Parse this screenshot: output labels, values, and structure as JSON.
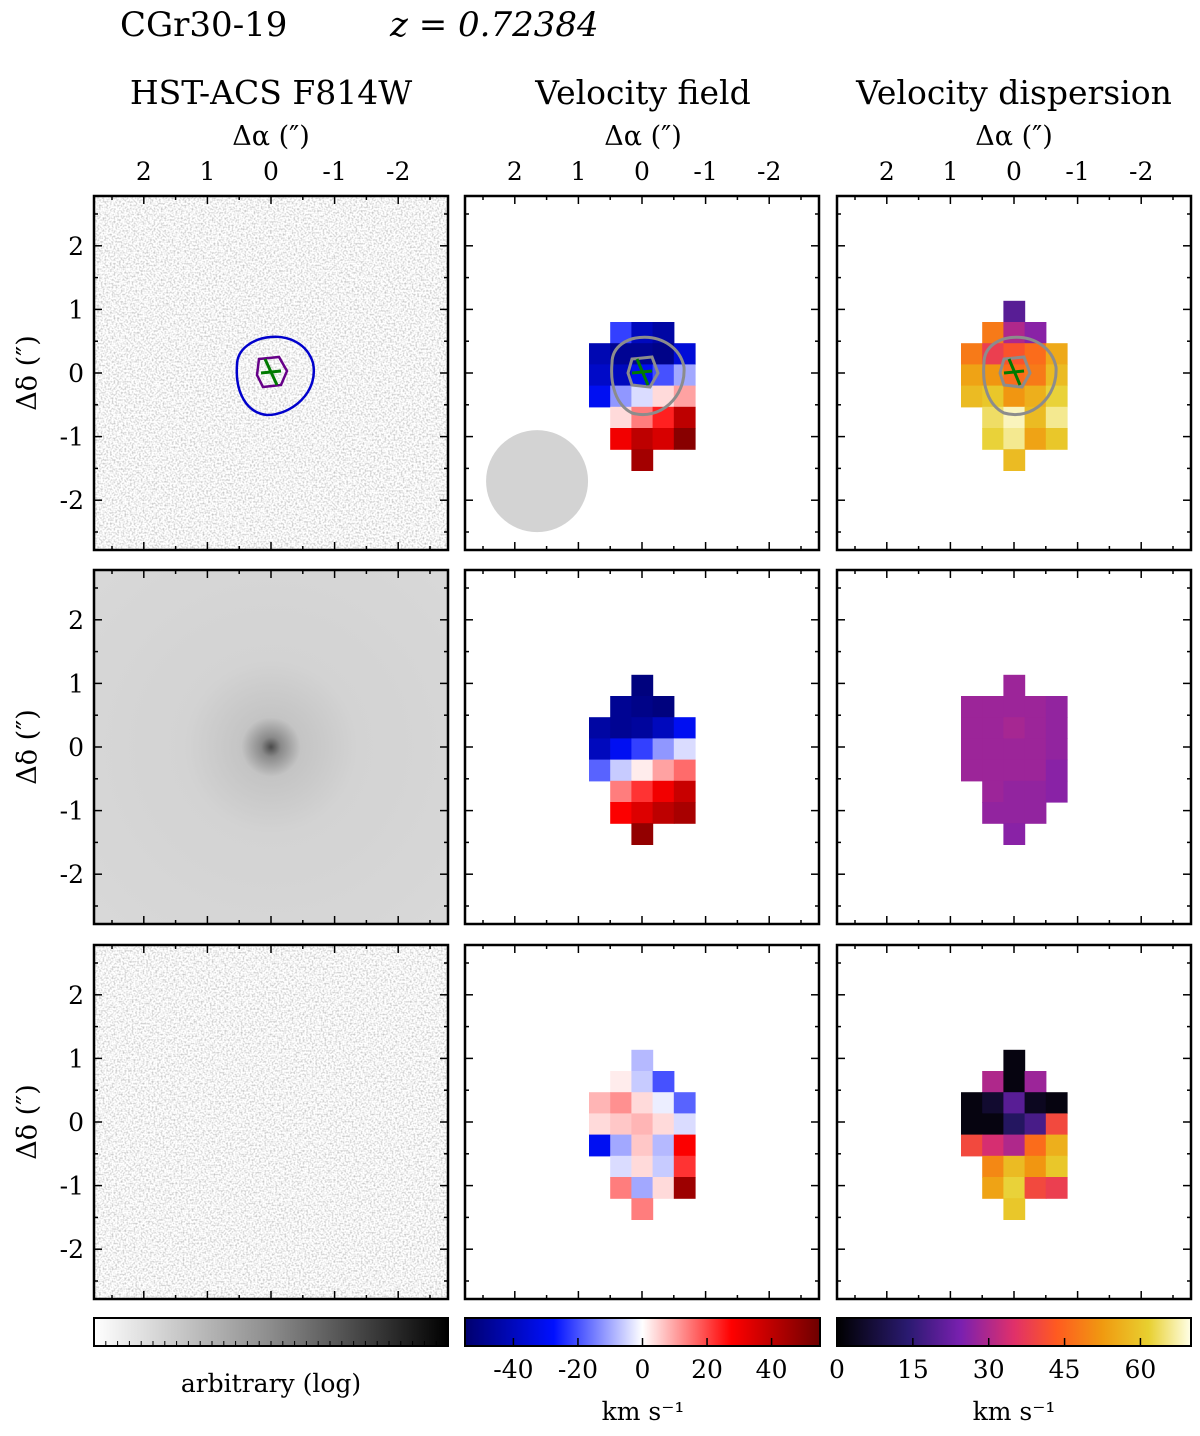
{
  "figure": {
    "object_name": "CGr30-19",
    "redshift_text": "z = 0.72384"
  },
  "columns": [
    {
      "title": "HST-ACS F814W",
      "xlabel": "Δα (″)"
    },
    {
      "title": "Velocity field",
      "xlabel": "Δα (″)"
    },
    {
      "title": "Velocity dispersion",
      "xlabel": "Δα (″)"
    }
  ],
  "ylabel": "Δδ (″)",
  "x_ticks": [
    "2",
    "1",
    "0",
    "-1",
    "-2"
  ],
  "y_ticks": [
    "2",
    "1",
    "0",
    "-1",
    "-2"
  ],
  "colorbars": [
    {
      "name": "image",
      "label": "arbitrary (log)",
      "ticks": [],
      "colors": [
        "#ffffff",
        "#000000"
      ]
    },
    {
      "name": "velocity",
      "label": "km s⁻¹",
      "ticks": [
        "-40",
        "-20",
        "0",
        "20",
        "40"
      ],
      "colors": [
        "#000066",
        "#0000ff",
        "#ffffff",
        "#ff0000",
        "#660000"
      ]
    },
    {
      "name": "dispersion",
      "label": "km s⁻¹",
      "ticks": [
        "0",
        "15",
        "30",
        "45",
        "60"
      ],
      "colors": [
        "#000000",
        "#5a1a9a",
        "#b0208a",
        "#ff4020",
        "#ffa000",
        "#ffffe0"
      ]
    }
  ],
  "chart_data": [
    {
      "type": "heatmap",
      "panel": "observed-image",
      "axes": {
        "x_range": [
          2.8,
          -2.8
        ],
        "y_range": [
          -2.8,
          2.8
        ]
      },
      "contours_colors": [
        "#0000cc",
        "#660088"
      ],
      "center_marker": "green cross"
    },
    {
      "type": "heatmap",
      "panel": "observed-velocity-field",
      "vlim": [
        -55,
        55
      ],
      "psf_fwhm_circle": true
    },
    {
      "type": "heatmap",
      "panel": "observed-velocity-dispersion",
      "vlim": [
        0,
        70
      ]
    },
    {
      "type": "heatmap",
      "panel": "model-image"
    },
    {
      "type": "heatmap",
      "panel": "model-velocity-field",
      "vlim": [
        -55,
        55
      ]
    },
    {
      "type": "heatmap",
      "panel": "model-velocity-dispersion",
      "vlim": [
        0,
        70
      ],
      "value_approx": 30
    },
    {
      "type": "heatmap",
      "panel": "residual-image"
    },
    {
      "type": "heatmap",
      "panel": "residual-velocity-field",
      "vlim": [
        -55,
        55
      ]
    },
    {
      "type": "heatmap",
      "panel": "residual-velocity-dispersion",
      "vlim": [
        0,
        70
      ]
    }
  ]
}
